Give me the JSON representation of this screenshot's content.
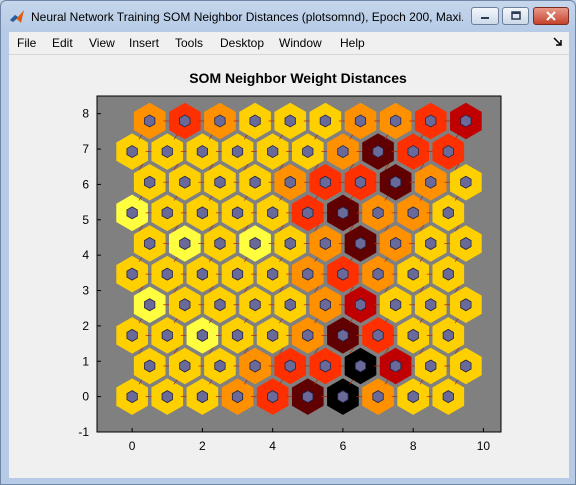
{
  "window": {
    "title": "Neural Network Training SOM Neighbor Distances (plotsomnd), Epoch 200, Maxi...",
    "controls": [
      "minimize",
      "maximize",
      "close"
    ]
  },
  "menu": {
    "items": [
      "File",
      "Edit",
      "View",
      "Insert",
      "Tools",
      "Desktop",
      "Window",
      "Help"
    ]
  },
  "chart_data": {
    "type": "heatmap",
    "title": "SOM Neighbor Weight Distances",
    "xlabel": "",
    "ylabel": "",
    "xlim": [
      -1,
      10.5
    ],
    "ylim": [
      -1,
      8.5
    ],
    "x_ticks": [
      "0",
      "2",
      "4",
      "6",
      "8",
      "10"
    ],
    "y_ticks": [
      "-1",
      "0",
      "1",
      "2",
      "3",
      "4",
      "5",
      "6",
      "7",
      "8"
    ],
    "grid": false,
    "background": "#808080",
    "neuron_color": "#6a6a9a",
    "colormap": [
      "#ffff40",
      "#ffd000",
      "#ff9000",
      "#ff3000",
      "#c00000",
      "#600000",
      "#000000"
    ],
    "grid_size": [
      10,
      10
    ],
    "layout": "hexagonal",
    "distances": [
      [
        1,
        1,
        1,
        2,
        3,
        5,
        6,
        2,
        1,
        1
      ],
      [
        1,
        1,
        1,
        2,
        3,
        3,
        6,
        4,
        1,
        1
      ],
      [
        1,
        1,
        0,
        1,
        1,
        2,
        5,
        3,
        1,
        1
      ],
      [
        0,
        1,
        1,
        1,
        1,
        2,
        4,
        1,
        1,
        1
      ],
      [
        1,
        1,
        1,
        1,
        1,
        2,
        3,
        2,
        1,
        1
      ],
      [
        1,
        0,
        1,
        0,
        1,
        2,
        5,
        2,
        1,
        1
      ],
      [
        0,
        1,
        1,
        1,
        1,
        3,
        5,
        2,
        2,
        1
      ],
      [
        1,
        1,
        1,
        1,
        2,
        3,
        3,
        5,
        2,
        1
      ],
      [
        1,
        1,
        1,
        1,
        1,
        1,
        2,
        5,
        3,
        3
      ],
      [
        2,
        3,
        2,
        1,
        1,
        1,
        2,
        2,
        3,
        4
      ]
    ]
  }
}
